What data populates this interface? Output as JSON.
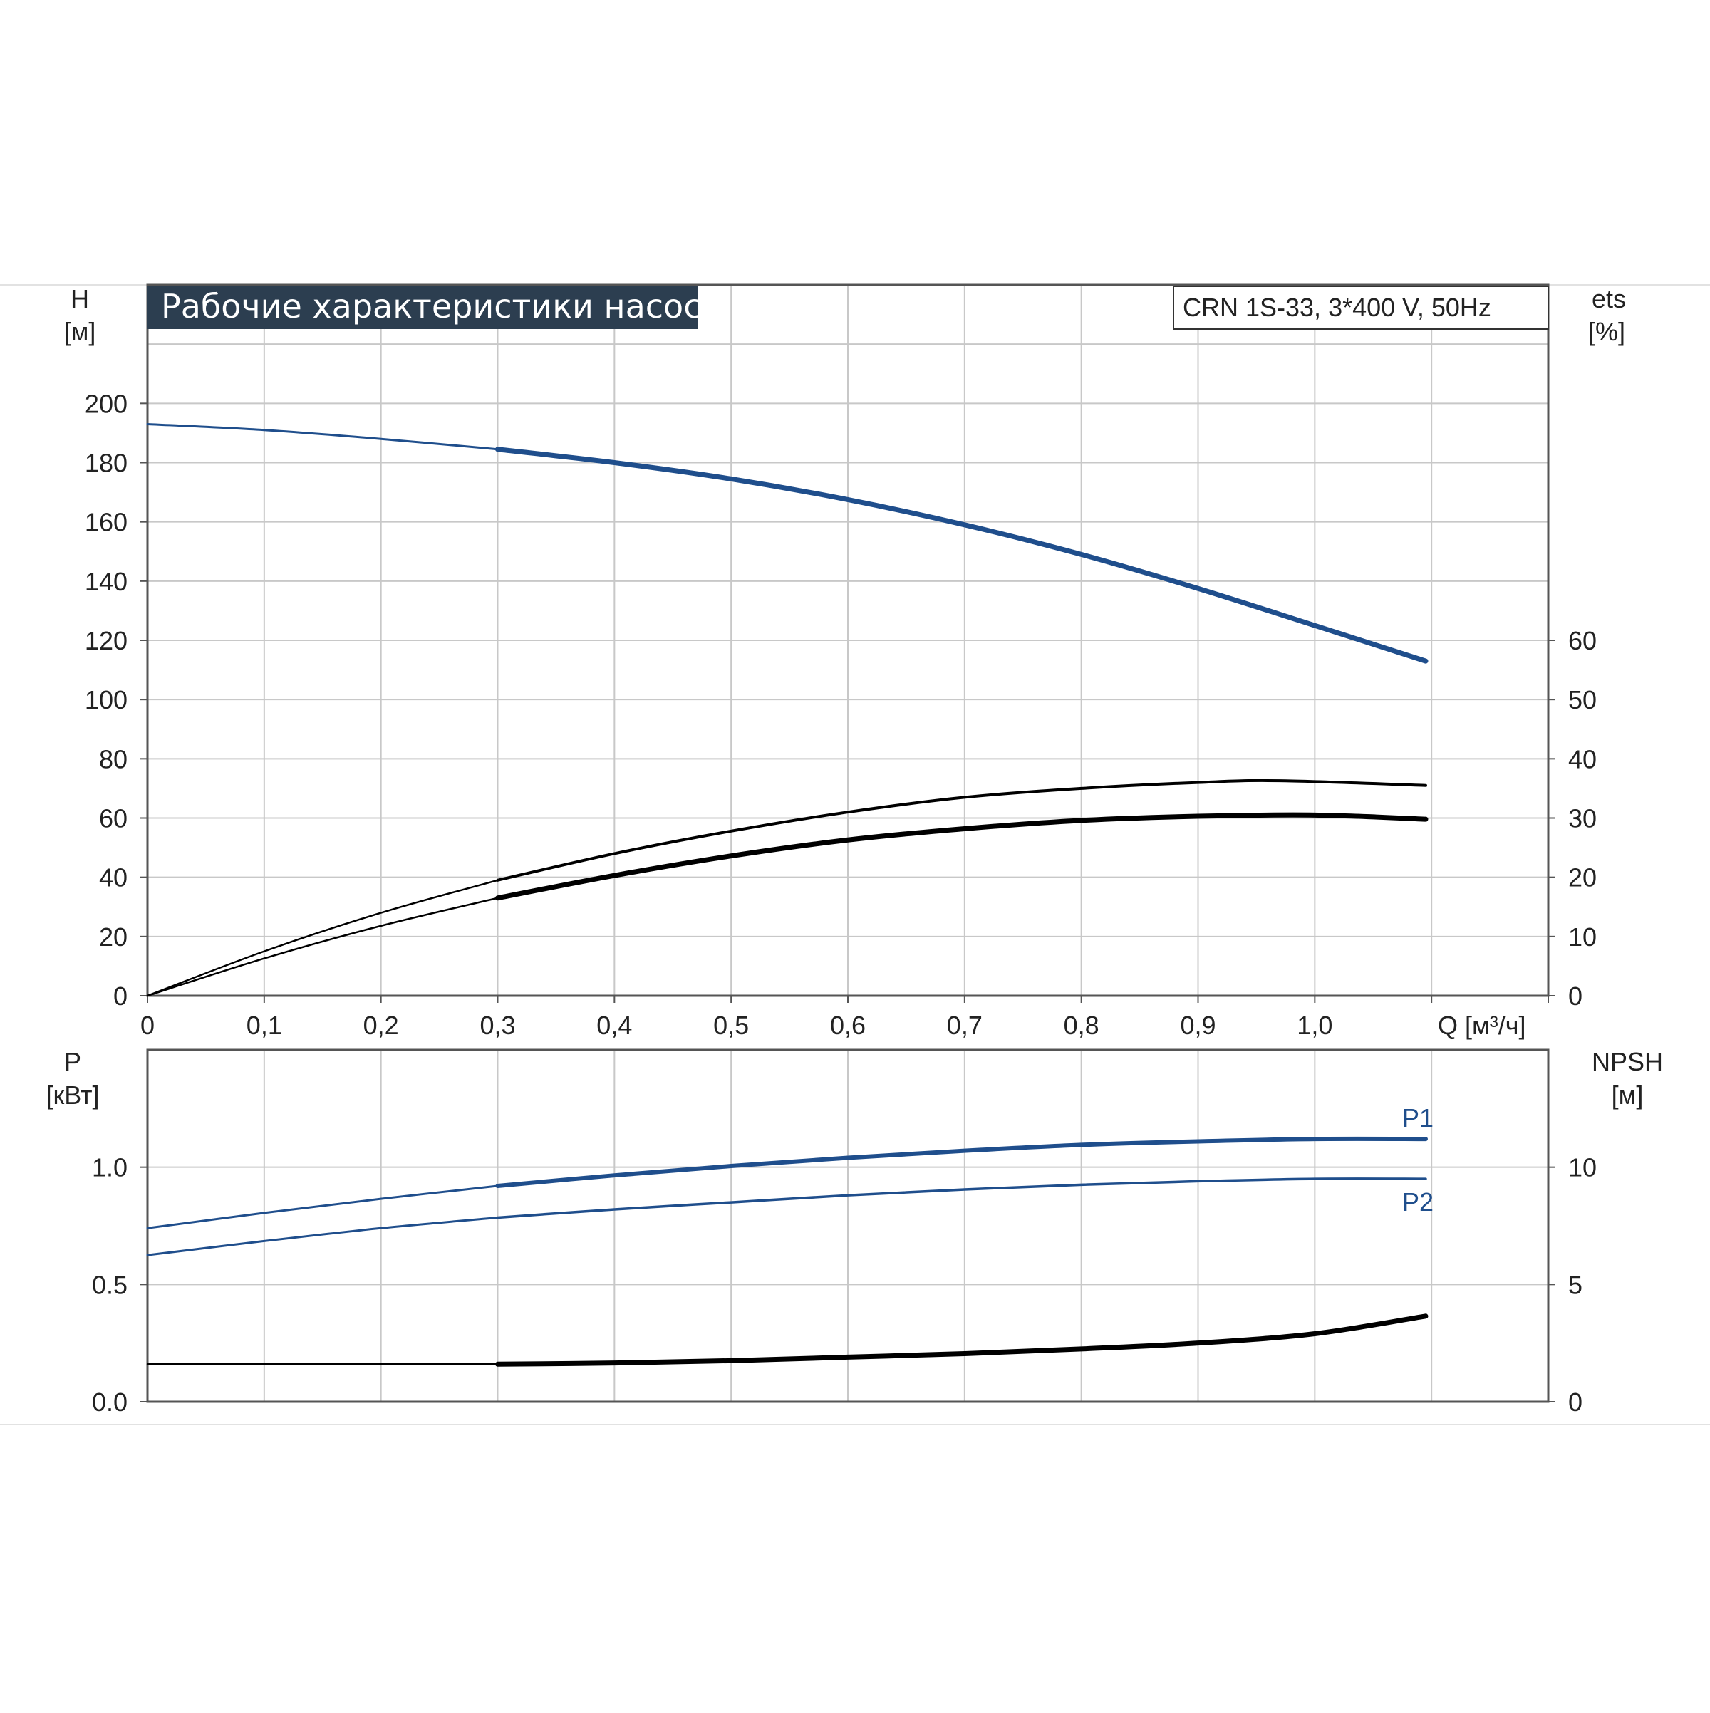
{
  "chart_data": [
    {
      "type": "line",
      "title": "Рабочие характеристики насоса",
      "model": "CRN 1S-33, 3*400 V, 50Hz",
      "xlabel": "Q [м³/ч]",
      "xlim": [
        0,
        1.2
      ],
      "x_ticks": [
        "0",
        "0,1",
        "0,2",
        "0,3",
        "0,4",
        "0,5",
        "0,6",
        "0,7",
        "0,8",
        "0,9",
        "1,0"
      ],
      "y_axis_left": {
        "label_top": "H",
        "label_unit": "[м]",
        "ylim": [
          0,
          240
        ],
        "ticks": [
          "0",
          "20",
          "40",
          "60",
          "80",
          "100",
          "120",
          "140",
          "160",
          "180",
          "200"
        ]
      },
      "y_axis_right": {
        "label_top": "ets",
        "label_unit": "[%]",
        "ylim": [
          0,
          120
        ],
        "ticks": [
          "0",
          "10",
          "20",
          "30",
          "40",
          "50",
          "60"
        ]
      },
      "grid": true,
      "colors": {
        "head": "#1f4e8c",
        "efficiency": "#000000",
        "grid": "#c8c8c8",
        "title_bg": "#2c3e50"
      },
      "series": [
        {
          "axis": "left",
          "style": "head",
          "x": [
            0,
            0.1,
            0.2,
            0.3,
            0.4,
            0.5,
            0.6,
            0.7,
            0.8,
            0.9,
            1.0,
            1.095
          ],
          "y": [
            193,
            191,
            188,
            184.5,
            180,
            174.5,
            167.5,
            159,
            149,
            137.5,
            125,
            113
          ]
        },
        {
          "axis": "right",
          "style": "eff-thin",
          "x": [
            0,
            0.1,
            0.2,
            0.3,
            0.4,
            0.5,
            0.6,
            0.7,
            0.8,
            0.9,
            0.97,
            1.095
          ],
          "y": [
            0,
            7.5,
            14,
            19.5,
            24,
            27.8,
            31,
            33.5,
            35,
            36,
            36.3,
            35.5
          ]
        },
        {
          "axis": "right",
          "style": "eff-thick",
          "x": [
            0,
            0.1,
            0.2,
            0.3,
            0.4,
            0.5,
            0.6,
            0.7,
            0.8,
            0.9,
            1.0,
            1.095
          ],
          "y": [
            0,
            6.3,
            11.8,
            16.5,
            20.3,
            23.6,
            26.3,
            28.2,
            29.6,
            30.3,
            30.5,
            29.8
          ]
        }
      ]
    },
    {
      "type": "line",
      "x_ticks": [],
      "xlim": [
        0,
        1.2
      ],
      "y_axis_left": {
        "label_top": "P",
        "label_unit": "[кВт]",
        "ylim": [
          0,
          1.5
        ],
        "ticks": [
          "0.0",
          "0.5",
          "1.0"
        ]
      },
      "y_axis_right": {
        "label_top": "NPSH",
        "label_unit": "[м]",
        "ylim": [
          0,
          15
        ],
        "ticks": [
          "0",
          "5",
          "10"
        ]
      },
      "grid": true,
      "series": [
        {
          "name": "P1",
          "axis": "left",
          "style": "p1",
          "x": [
            0,
            0.1,
            0.2,
            0.3,
            0.4,
            0.5,
            0.6,
            0.7,
            0.8,
            0.9,
            1.0,
            1.095
          ],
          "y": [
            0.74,
            0.805,
            0.865,
            0.92,
            0.965,
            1.005,
            1.04,
            1.07,
            1.095,
            1.11,
            1.12,
            1.12
          ]
        },
        {
          "name": "P2",
          "axis": "left",
          "style": "p2",
          "x": [
            0,
            0.1,
            0.2,
            0.3,
            0.4,
            0.5,
            0.6,
            0.7,
            0.8,
            0.9,
            1.0,
            1.095
          ],
          "y": [
            0.625,
            0.685,
            0.74,
            0.785,
            0.82,
            0.85,
            0.88,
            0.905,
            0.925,
            0.94,
            0.95,
            0.95
          ]
        },
        {
          "axis": "right",
          "style": "npsh",
          "x": [
            0,
            0.3,
            0.4,
            0.5,
            0.6,
            0.7,
            0.8,
            0.9,
            1.0,
            1.095
          ],
          "y": [
            1.6,
            1.6,
            1.65,
            1.75,
            1.9,
            2.05,
            2.25,
            2.5,
            2.9,
            3.65
          ]
        }
      ]
    }
  ]
}
